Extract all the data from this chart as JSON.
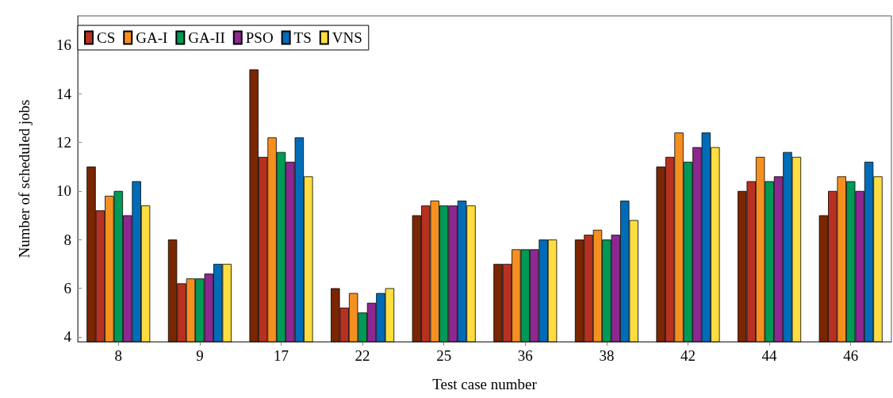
{
  "chart_data": {
    "type": "bar",
    "xlabel": "Test case number",
    "ylabel": "Number of scheduled jobs",
    "categories": [
      "8",
      "9",
      "17",
      "22",
      "25",
      "36",
      "38",
      "42",
      "44",
      "46"
    ],
    "series": [
      {
        "color": "#7a2600",
        "values": [
          11,
          8,
          15,
          6,
          9,
          7,
          8,
          11,
          10,
          9
        ]
      },
      {
        "name": "CS",
        "color": "#b83020",
        "values": [
          9.2,
          6.2,
          11.4,
          5.2,
          9.4,
          7,
          8.2,
          11.4,
          10.4,
          10
        ]
      },
      {
        "name": "GA-I",
        "color": "#f59020",
        "values": [
          9.8,
          6.4,
          12.2,
          5.8,
          9.6,
          7.6,
          8.4,
          12.4,
          11.4,
          10.6
        ]
      },
      {
        "name": "GA-II",
        "color": "#009955",
        "values": [
          10,
          6.4,
          11.6,
          5,
          9.4,
          7.6,
          8,
          11.2,
          10.4,
          10.4
        ]
      },
      {
        "name": "PSO",
        "color": "#8c2890",
        "values": [
          9,
          6.6,
          11.2,
          5.4,
          9.4,
          7.6,
          8.2,
          11.8,
          10.6,
          10
        ]
      },
      {
        "name": "TS",
        "color": "#006cb8",
        "values": [
          10.4,
          7,
          12.2,
          5.8,
          9.6,
          8,
          9.6,
          12.4,
          11.6,
          11.2
        ]
      },
      {
        "name": "VNS",
        "color": "#ffdd40",
        "values": [
          9.4,
          7,
          10.6,
          6,
          9.4,
          8,
          8.8,
          11.8,
          11.4,
          10.6
        ]
      }
    ],
    "ylim": [
      3.8,
      17.2
    ],
    "yticks": [
      4,
      6,
      8,
      10,
      12,
      14,
      16
    ],
    "grid": false,
    "legend": "top left"
  }
}
